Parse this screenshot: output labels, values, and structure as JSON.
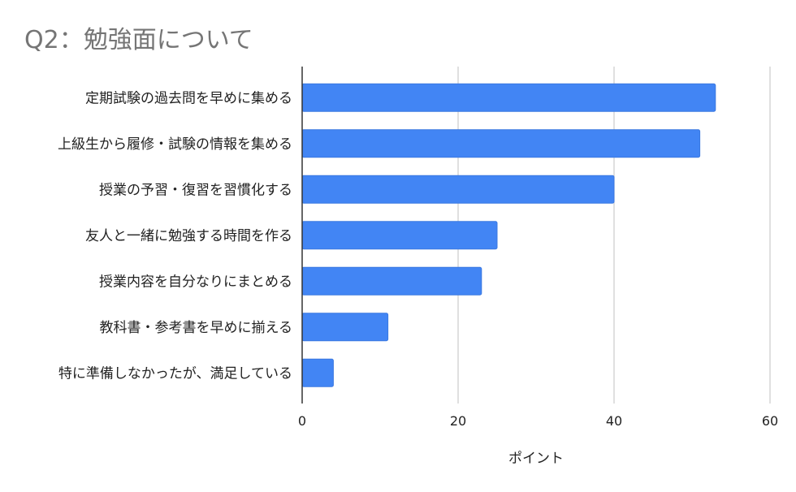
{
  "chart_data": {
    "type": "bar",
    "orientation": "horizontal",
    "title": "Q2：勉強面について",
    "xlabel": "ポイント",
    "ylabel": "",
    "xlim": [
      0,
      60
    ],
    "xticks": [
      0,
      20,
      40,
      60
    ],
    "grid": true,
    "bar_color": "#4285f4",
    "categories": [
      "定期試験の過去問を早めに集める",
      "上級生から履修・試験の情報を集める",
      "授業の予習・復習を習慣化する",
      "友人と一緒に勉強する時間を作る",
      "授業内容を自分なりにまとめる",
      "教科書・参考書を早めに揃える",
      "特に準備しなかったが、満足している"
    ],
    "values": [
      53,
      51,
      40,
      25,
      23,
      11,
      4
    ]
  }
}
